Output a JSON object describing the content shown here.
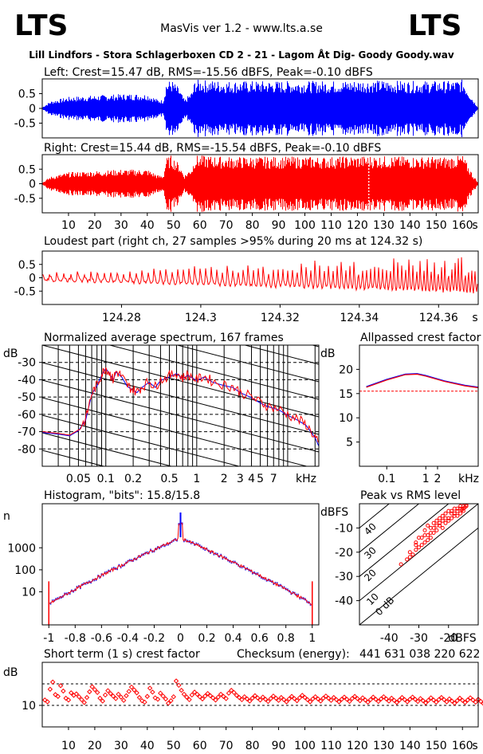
{
  "header": {
    "logo_left": "LTS",
    "logo_right": "LTS",
    "center_title": "MasVis ver 1.2 - www.lts.a.se",
    "track": "Lill Lindfors - Stora Schlagerboxen CD 2 - 21 - Lagom Åt Dig- Goody Goody.wav"
  },
  "colors": {
    "left": "#0000ff",
    "right": "#ff0000",
    "frame": "#000000",
    "dashed": "#000000"
  },
  "chart_data": [
    {
      "id": "left",
      "type": "area",
      "title": "Left: Crest=15.47 dB, RMS=-15.56 dBFS, Peak=-0.10 dBFS",
      "yticks": [
        "0.5",
        "0",
        "-0.5"
      ],
      "ylim": [
        -1,
        1
      ],
      "xlim": [
        0,
        166
      ],
      "series": [
        {
          "name": "",
          "color": "#0000ff"
        }
      ],
      "envelope": [
        {
          "t": 0,
          "a": 0.05
        },
        {
          "t": 3,
          "a": 0.25
        },
        {
          "t": 10,
          "a": 0.4
        },
        {
          "t": 20,
          "a": 0.45
        },
        {
          "t": 30,
          "a": 0.5
        },
        {
          "t": 40,
          "a": 0.5
        },
        {
          "t": 44,
          "a": 0.3
        },
        {
          "t": 46,
          "a": 0.3
        },
        {
          "t": 47,
          "a": 0.9
        },
        {
          "t": 49,
          "a": 1.0
        },
        {
          "t": 52,
          "a": 0.7
        },
        {
          "t": 54,
          "a": 0.3
        },
        {
          "t": 57,
          "a": 0.6
        },
        {
          "t": 58,
          "a": 1.0
        },
        {
          "t": 70,
          "a": 0.95
        },
        {
          "t": 90,
          "a": 0.95
        },
        {
          "t": 110,
          "a": 0.95
        },
        {
          "t": 125,
          "a": 0.98
        },
        {
          "t": 140,
          "a": 0.95
        },
        {
          "t": 155,
          "a": 0.95
        },
        {
          "t": 160,
          "a": 1.0
        },
        {
          "t": 164,
          "a": 0.3
        },
        {
          "t": 166,
          "a": 0.02
        }
      ]
    },
    {
      "id": "right",
      "type": "area",
      "title": "Right: Crest=15.44 dB, RMS=-15.54 dBFS, Peak=-0.10 dBFS",
      "yticks": [
        "0.5",
        "0",
        "-0.5"
      ],
      "ylim": [
        -1,
        1
      ],
      "xlim": [
        0,
        166
      ],
      "xticks": [
        "10",
        "20",
        "30",
        "40",
        "50",
        "60",
        "70",
        "80",
        "90",
        "100",
        "110",
        "120",
        "130",
        "140",
        "150",
        "160"
      ],
      "xunit": "s",
      "marker_time": 124.32,
      "series": [
        {
          "name": "",
          "color": "#ff0000"
        }
      ],
      "envelope": [
        {
          "t": 0,
          "a": 0.05
        },
        {
          "t": 3,
          "a": 0.25
        },
        {
          "t": 10,
          "a": 0.4
        },
        {
          "t": 20,
          "a": 0.45
        },
        {
          "t": 30,
          "a": 0.5
        },
        {
          "t": 40,
          "a": 0.5
        },
        {
          "t": 44,
          "a": 0.3
        },
        {
          "t": 46,
          "a": 0.3
        },
        {
          "t": 47,
          "a": 0.9
        },
        {
          "t": 49,
          "a": 1.0
        },
        {
          "t": 52,
          "a": 0.7
        },
        {
          "t": 54,
          "a": 0.3
        },
        {
          "t": 57,
          "a": 0.6
        },
        {
          "t": 58,
          "a": 1.0
        },
        {
          "t": 70,
          "a": 0.95
        },
        {
          "t": 90,
          "a": 0.95
        },
        {
          "t": 110,
          "a": 0.95
        },
        {
          "t": 125,
          "a": 0.98
        },
        {
          "t": 140,
          "a": 0.95
        },
        {
          "t": 155,
          "a": 0.95
        },
        {
          "t": 160,
          "a": 1.0
        },
        {
          "t": 164,
          "a": 0.3
        },
        {
          "t": 166,
          "a": 0.02
        }
      ]
    },
    {
      "id": "loudest",
      "type": "line",
      "title": "Loudest part (right ch, 27 samples >95% during 20 ms at 124.32 s)",
      "yticks": [
        "0.5",
        "0",
        "-0.5"
      ],
      "ylim": [
        -1,
        1
      ],
      "xlim": [
        124.26,
        124.37
      ],
      "xticks": [
        "124.28",
        "124.3",
        "124.32",
        "124.34",
        "124.36"
      ],
      "xunit": "s",
      "series": [
        {
          "name": "",
          "color": "#ff0000"
        }
      ]
    },
    {
      "id": "spectrum",
      "type": "line",
      "title": "Normalized average spectrum, 167 frames",
      "ylabel": "dB",
      "yticks": [
        "-30",
        "-40",
        "-50",
        "-60",
        "-70",
        "-80"
      ],
      "ylim": [
        -90,
        -20
      ],
      "xticks": [
        "0.05",
        "0.1",
        "0.2",
        "0.5",
        "1",
        "2",
        "3",
        "4",
        "5",
        "7"
      ],
      "xunit": "kHz",
      "xlim_khz": [
        0.02,
        22
      ],
      "series": [
        {
          "name": "",
          "color": "#ff0000",
          "color2": "#0000ff",
          "points": [
            [
              0.02,
              -70
            ],
            [
              0.03,
              -71
            ],
            [
              0.04,
              -72
            ],
            [
              0.05,
              -69
            ],
            [
              0.06,
              -63
            ],
            [
              0.07,
              -48
            ],
            [
              0.08,
              -43
            ],
            [
              0.09,
              -37
            ],
            [
              0.1,
              -33
            ],
            [
              0.11,
              -36
            ],
            [
              0.12,
              -40
            ],
            [
              0.13,
              -35
            ],
            [
              0.15,
              -38
            ],
            [
              0.17,
              -43
            ],
            [
              0.19,
              -45
            ],
            [
              0.22,
              -47
            ],
            [
              0.25,
              -44
            ],
            [
              0.3,
              -41
            ],
            [
              0.35,
              -44
            ],
            [
              0.4,
              -40
            ],
            [
              0.5,
              -38
            ],
            [
              0.6,
              -36
            ],
            [
              0.7,
              -39
            ],
            [
              0.8,
              -37
            ],
            [
              1,
              -40
            ],
            [
              1.2,
              -38
            ],
            [
              1.5,
              -41
            ],
            [
              2,
              -43
            ],
            [
              2.5,
              -44
            ],
            [
              3,
              -47
            ],
            [
              4,
              -50
            ],
            [
              5,
              -53
            ],
            [
              6,
              -55
            ],
            [
              8,
              -57
            ],
            [
              10,
              -60
            ],
            [
              13,
              -63
            ],
            [
              16,
              -66
            ],
            [
              20,
              -73
            ],
            [
              22,
              -78
            ]
          ]
        }
      ]
    },
    {
      "id": "crest",
      "type": "line",
      "title": "Allpassed crest factor",
      "ylabel": "dB",
      "yticks": [
        "20",
        "15",
        "10",
        "5"
      ],
      "ylim": [
        0,
        25
      ],
      "xticks": [
        "0.1",
        "1",
        "2"
      ],
      "xunit": "kHz",
      "reference": 15.5,
      "series": [
        {
          "name": "",
          "color": "#ff0000",
          "points": [
            [
              0.03,
              16.3
            ],
            [
              0.1,
              17.8
            ],
            [
              0.3,
              18.9
            ],
            [
              0.6,
              19
            ],
            [
              1,
              18.6
            ],
            [
              3,
              17.5
            ],
            [
              10,
              16.6
            ],
            [
              22,
              16.2
            ]
          ]
        }
      ]
    },
    {
      "id": "histogram",
      "type": "line",
      "title": "Histogram, \"bits\": 15.8/15.8",
      "ylabel": "n",
      "yticks": [
        "1000",
        "100",
        "10"
      ],
      "xticks": [
        "-1",
        "-0.8",
        "-0.6",
        "-0.4",
        "-0.2",
        "0",
        "0.2",
        "0.4",
        "0.6",
        "0.8",
        "1"
      ],
      "xlim": [
        -1.05,
        1.05
      ],
      "series": [
        {
          "name": "",
          "color": "#ff0000",
          "color2": "#0000ff"
        }
      ]
    },
    {
      "id": "peakrms",
      "type": "scatter",
      "title": "Peak vs RMS level",
      "ylabel": "dBFS",
      "xlabel": "dBFS",
      "yticks": [
        "-10",
        "-20",
        "-30",
        "-40"
      ],
      "xticks": [
        "-40",
        "-30",
        "-20"
      ],
      "diagonals": [
        "40",
        "30",
        "20",
        "10",
        "0 dB"
      ],
      "series": [
        {
          "name": "",
          "color": "#ff0000",
          "points": [
            [
              -30,
              -14
            ],
            [
              -31,
              -16
            ],
            [
              -28,
              -11
            ],
            [
              -27,
              -9
            ],
            [
              -26,
              -10
            ],
            [
              -25,
              -8
            ],
            [
              -24,
              -7
            ],
            [
              -23,
              -6
            ],
            [
              -22,
              -5
            ],
            [
              -21,
              -4
            ],
            [
              -20,
              -3
            ],
            [
              -19,
              -3
            ],
            [
              -18,
              -2
            ],
            [
              -17,
              -2
            ],
            [
              -16,
              -1
            ],
            [
              -15,
              -1
            ],
            [
              -14,
              -0.5
            ],
            [
              -14,
              -1
            ],
            [
              -15,
              -3
            ],
            [
              -16,
              -4
            ],
            [
              -17,
              -3
            ],
            [
              -18,
              -5
            ],
            [
              -19,
              -6
            ],
            [
              -20,
              -7
            ],
            [
              -21,
              -8
            ],
            [
              -22,
              -7
            ],
            [
              -23,
              -9
            ],
            [
              -24,
              -11
            ],
            [
              -25,
              -12
            ],
            [
              -26,
              -14
            ],
            [
              -27,
              -15
            ],
            [
              -28,
              -16
            ],
            [
              -29,
              -17
            ],
            [
              -30,
              -18
            ],
            [
              -31,
              -19
            ],
            [
              -32,
              -21
            ],
            [
              -33,
              -22
            ],
            [
              -34,
              -23
            ],
            [
              -36,
              -25
            ],
            [
              -28,
              -13
            ],
            [
              -26,
              -12
            ],
            [
              -24,
              -9
            ],
            [
              -22,
              -10
            ],
            [
              -20,
              -6
            ],
            [
              -18,
              -4
            ],
            [
              -16,
              -2
            ],
            [
              -15,
              -2
            ],
            [
              -17,
              -5
            ],
            [
              -19,
              -4
            ],
            [
              -21,
              -6
            ],
            [
              -23,
              -8
            ],
            [
              -25,
              -10
            ],
            [
              -27,
              -13
            ],
            [
              -29,
              -14
            ],
            [
              -31,
              -17
            ],
            [
              -33,
              -20
            ],
            [
              -14.5,
              -1.5
            ],
            [
              -15.5,
              -2.5
            ]
          ]
        }
      ]
    },
    {
      "id": "stcrest",
      "type": "scatter",
      "title": "Short term (1 s) crest factor",
      "ylabel": "dB",
      "yticks": [
        "10"
      ],
      "ylim": [
        4,
        22
      ],
      "xlim": [
        0,
        166
      ],
      "xticks": [
        "10",
        "20",
        "30",
        "40",
        "50",
        "60",
        "70",
        "80",
        "90",
        "100",
        "110",
        "120",
        "130",
        "140",
        "150",
        "160"
      ],
      "xunit": "s",
      "dashed": [
        16,
        10
      ],
      "checksum_label": "Checksum (energy):",
      "checksum": "441 631 038 220 622",
      "series": [
        {
          "name": "",
          "color": "#ff0000",
          "values": [
            11.5,
            11,
            14.5,
            16.5,
            13,
            12.5,
            15.5,
            14,
            12,
            11.5,
            13.5,
            12.8,
            13.2,
            12.4,
            11.6,
            10.8,
            12.2,
            13.8,
            15.2,
            14.4,
            13.6,
            12,
            11.2,
            12.9,
            14.1,
            13.3,
            12.6,
            11.9,
            13.1,
            12.3,
            11.4,
            12.7,
            13.9,
            15.1,
            14.3,
            13.5,
            12.2,
            11.3,
            10.9,
            12.5,
            14.8,
            13.7,
            12.1,
            11.7,
            13.4,
            12.6,
            11.8,
            10.6,
            11.3,
            12.4,
            16.8,
            15.6,
            14.2,
            13.1,
            12.3,
            11.6,
            12.9,
            13.7,
            13.1,
            12.4,
            11.8,
            12.6,
            13.3,
            12.7,
            12.1,
            11.5,
            12.3,
            13.1,
            12.5,
            11.9,
            13.4,
            14.2,
            13.6,
            12.8,
            12.2,
            11.6,
            12.4,
            11.8,
            11.2,
            12,
            12.7,
            12.1,
            11.5,
            12.3,
            11.7,
            11.1,
            11.9,
            12.6,
            12,
            11.4,
            12.2,
            11.6,
            11,
            11.8,
            12.5,
            11.9,
            11.3,
            12.1,
            12.8,
            12.2,
            11.6,
            11,
            11.8,
            12.4,
            11.8,
            11.2,
            12,
            12.6,
            12,
            11.4,
            12.2,
            11.6,
            11,
            11.7,
            12.3,
            11.7,
            11.1,
            11.9,
            12.5,
            11.9,
            11.3,
            12.1,
            11.5,
            10.9,
            11.6,
            12.3,
            11.7,
            11.1,
            11.8,
            12.4,
            11.8,
            11.2,
            12,
            11.4,
            10.8,
            11.5,
            12.2,
            11.6,
            11,
            11.7,
            12.3,
            11.7,
            11.1,
            11.9,
            11.3,
            10.7,
            11.4,
            12.1,
            11.5,
            10.9,
            11.6,
            12.2,
            11.6,
            11,
            11.8,
            11.2,
            10.6,
            11.3,
            12,
            11.4,
            10.8,
            11.5,
            12.1,
            11.5,
            10.9,
            11.7,
            11.1,
            10.5,
            11.2,
            13.5,
            13
          ]
        }
      ]
    }
  ]
}
